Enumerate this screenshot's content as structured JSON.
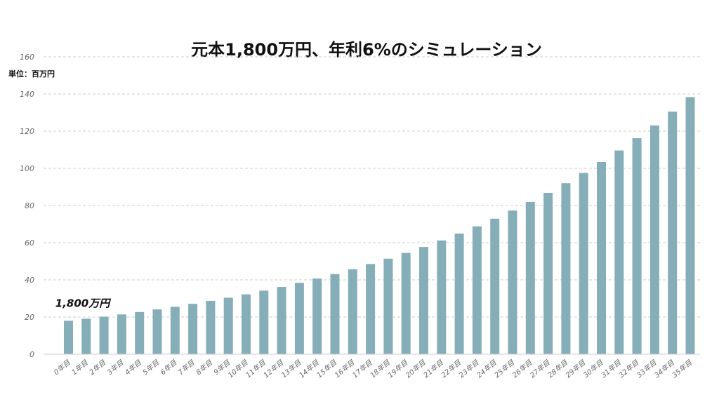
{
  "chart_data": {
    "type": "bar",
    "title": "元本1,800万円、年利6%のシミュレーション",
    "unit_label": "単位：百万円",
    "ylim": [
      0,
      160
    ],
    "yticks": [
      0,
      20,
      40,
      60,
      80,
      100,
      120,
      140,
      160
    ],
    "grid": true,
    "bar_color": "#86aeb8",
    "categories": [
      "0年目",
      "1年目",
      "2年目",
      "3年目",
      "4年目",
      "5年目",
      "6年目",
      "7年目",
      "8年目",
      "9年目",
      "10年目",
      "11年目",
      "12年目",
      "13年目",
      "14年目",
      "15年目",
      "16年目",
      "17年目",
      "18年目",
      "19年目",
      "20年目",
      "21年目",
      "22年目",
      "23年目",
      "24年目",
      "25年目",
      "26年目",
      "27年目",
      "28年目",
      "29年目",
      "30年目",
      "31年目",
      "32年目",
      "33年目",
      "34年目",
      "35年目"
    ],
    "values": [
      18.0,
      19.1,
      20.2,
      21.4,
      22.7,
      24.1,
      25.5,
      27.1,
      28.7,
      30.4,
      32.2,
      34.2,
      36.2,
      38.4,
      40.7,
      43.1,
      45.7,
      48.5,
      51.4,
      54.5,
      57.7,
      61.2,
      64.9,
      68.8,
      72.9,
      77.3,
      81.9,
      86.8,
      92.0,
      97.5,
      103.4,
      109.6,
      116.2,
      123.1,
      130.5,
      138.3
    ],
    "annotation": {
      "text": "1,800万円",
      "category_index": 0
    }
  }
}
